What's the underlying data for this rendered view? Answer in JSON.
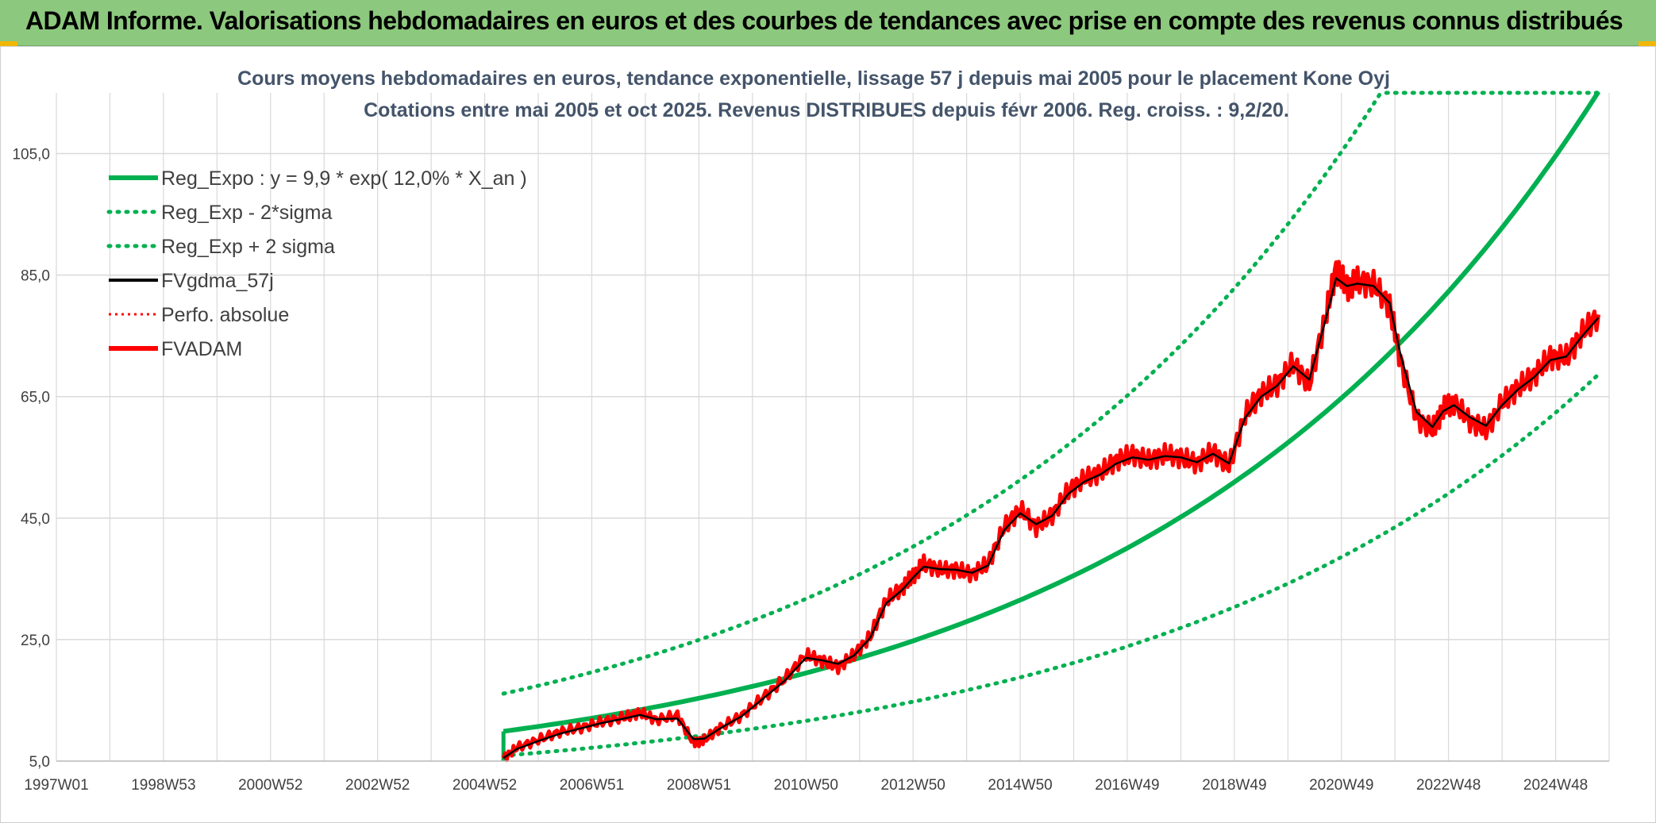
{
  "banner": {
    "title": "ADAM Informe. Valorisations hebdomadaires en euros et des courbes de tendances avec prise en compte des revenus connus distribués"
  },
  "colors": {
    "banner_bg": "#8cc87d",
    "trend": "#00b050",
    "band": "#00b050",
    "smoothed": "#000000",
    "perfo": "#ff0000",
    "fvadam": "#ff0000",
    "grid": "#d9d9d9"
  },
  "chart_data": {
    "type": "line",
    "title_lines": [
      "Cours moyens hebdomadaires en euros, tendance exponentielle, lissage 57 j depuis mai 2005 pour le placement Kone Oyj",
      "Cotations entre mai 2005 et oct 2025. Revenus DISTRIBUES depuis févr 2006. Reg. croiss. : 9,2/20."
    ],
    "x_tick_labels": [
      "1997W01",
      "1998W53",
      "2000W52",
      "2002W52",
      "2004W52",
      "2006W51",
      "2008W51",
      "2010W50",
      "2012W50",
      "2014W50",
      "2016W49",
      "2018W49",
      "2020W49",
      "2022W48",
      "2024W48"
    ],
    "x_ticks_years": [
      1997.0,
      1999.0,
      2001.0,
      2003.0,
      2005.0,
      2007.0,
      2009.0,
      2011.0,
      2013.0,
      2015.0,
      2017.0,
      2019.0,
      2021.0,
      2023.0,
      2025.0
    ],
    "x_range": [
      1997.0,
      2026.0
    ],
    "y_tick_labels": [
      "5,0",
      "25,0",
      "45,0",
      "65,0",
      "85,0",
      "105,0"
    ],
    "y_ticks": [
      5,
      25,
      45,
      65,
      85,
      105
    ],
    "ylim": [
      5,
      115
    ],
    "legend": [
      {
        "key": "trend",
        "label": "Reg_Expo : y = 9,9 * exp( 12,0% *  X_an )",
        "style": "solid-thick"
      },
      {
        "key": "lower",
        "label": "Reg_Exp - 2*sigma",
        "style": "dotted"
      },
      {
        "key": "upper",
        "label": "Reg_Exp + 2 sigma",
        "style": "dotted"
      },
      {
        "key": "smooth",
        "label": "FVgdma_57j",
        "style": "solid"
      },
      {
        "key": "perfo",
        "label": "Perfo. absolue",
        "style": "dotted-red"
      },
      {
        "key": "fvadam",
        "label": "FVADAM",
        "style": "solid-red"
      }
    ],
    "series_trend": {
      "name": "Reg_Expo",
      "start": 2005.35,
      "end": 2025.8,
      "a": 9.9,
      "rate": 0.12
    },
    "series_lower": {
      "name": "Reg_Exp - 2*sigma",
      "start": 2005.35,
      "end": 2025.8,
      "a": 5.9,
      "rate": 0.12
    },
    "series_upper": {
      "name": "Reg_Exp + 2 sigma",
      "start": 2005.35,
      "end": 2025.8,
      "a": 16.1,
      "rate": 0.12,
      "cap": 115
    },
    "series_fvadam": {
      "name": "FVADAM",
      "x": [
        2005.35,
        2005.6,
        2006.0,
        2006.4,
        2006.8,
        2007.2,
        2007.6,
        2007.9,
        2008.2,
        2008.6,
        2008.9,
        2009.1,
        2009.4,
        2009.8,
        2010.2,
        2010.6,
        2011.0,
        2011.3,
        2011.6,
        2011.9,
        2012.2,
        2012.5,
        2012.8,
        2013.0,
        2013.2,
        2013.5,
        2013.8,
        2014.1,
        2014.4,
        2014.7,
        2015.0,
        2015.3,
        2015.6,
        2015.9,
        2016.2,
        2016.5,
        2016.8,
        2017.1,
        2017.4,
        2017.7,
        2018.0,
        2018.3,
        2018.6,
        2018.9,
        2019.2,
        2019.5,
        2019.8,
        2020.1,
        2020.4,
        2020.7,
        2020.9,
        2021.1,
        2021.3,
        2021.6,
        2021.9,
        2022.1,
        2022.4,
        2022.7,
        2022.9,
        2023.1,
        2023.4,
        2023.7,
        2024.0,
        2024.3,
        2024.6,
        2024.9,
        2025.2,
        2025.5,
        2025.8
      ],
      "values": [
        5.5,
        7.2,
        8.5,
        9.8,
        10.5,
        11.5,
        12.2,
        13.0,
        11.8,
        12.5,
        8.0,
        8.5,
        10.5,
        12.5,
        15.5,
        18.5,
        22.5,
        21.5,
        20.5,
        22.5,
        25.5,
        31.5,
        33.5,
        35.5,
        37.5,
        36.5,
        36.5,
        35.8,
        37.5,
        43.5,
        46.5,
        43.5,
        45.5,
        49.5,
        51.5,
        52.5,
        54.5,
        55.5,
        54.5,
        55.5,
        55.0,
        54.0,
        56.0,
        53.5,
        62.0,
        65.5,
        67.0,
        70.5,
        67.0,
        78.0,
        86.0,
        83.0,
        84.0,
        83.5,
        80.0,
        71.0,
        61.5,
        59.5,
        63.0,
        64.0,
        61.0,
        59.5,
        64.0,
        66.5,
        68.5,
        71.5,
        71.5,
        75.5,
        78.5
      ]
    },
    "series_smooth": {
      "name": "FVgdma_57j",
      "x": [
        2005.35,
        2005.6,
        2006.0,
        2006.4,
        2006.8,
        2007.2,
        2007.6,
        2007.9,
        2008.2,
        2008.6,
        2008.9,
        2009.1,
        2009.4,
        2009.8,
        2010.2,
        2010.6,
        2011.0,
        2011.3,
        2011.6,
        2011.9,
        2012.2,
        2012.5,
        2012.8,
        2013.0,
        2013.2,
        2013.5,
        2013.8,
        2014.1,
        2014.4,
        2014.7,
        2015.0,
        2015.3,
        2015.6,
        2015.9,
        2016.2,
        2016.5,
        2016.8,
        2017.1,
        2017.4,
        2017.7,
        2018.0,
        2018.3,
        2018.6,
        2018.9,
        2019.2,
        2019.5,
        2019.8,
        2020.1,
        2020.4,
        2020.7,
        2020.9,
        2021.1,
        2021.3,
        2021.6,
        2021.9,
        2022.1,
        2022.4,
        2022.7,
        2022.9,
        2023.1,
        2023.4,
        2023.7,
        2024.0,
        2024.3,
        2024.6,
        2024.9,
        2025.2,
        2025.5,
        2025.8
      ],
      "values": [
        5.5,
        7.0,
        8.3,
        9.5,
        10.4,
        11.3,
        12.0,
        12.6,
        11.9,
        12.0,
        8.6,
        8.7,
        10.4,
        12.4,
        15.3,
        18.2,
        22.0,
        21.6,
        21.0,
        22.4,
        25.3,
        31.0,
        33.2,
        35.2,
        37.0,
        36.6,
        36.5,
        36.0,
        37.2,
        43.0,
        45.8,
        44.0,
        45.4,
        49.0,
        51.0,
        52.2,
        54.0,
        55.0,
        54.6,
        55.2,
        55.0,
        54.2,
        55.6,
        54.0,
        61.5,
        65.0,
        66.8,
        70.0,
        67.8,
        77.5,
        84.5,
        83.2,
        83.6,
        83.2,
        80.4,
        72.0,
        62.5,
        60.0,
        62.6,
        63.6,
        61.6,
        60.2,
        63.6,
        66.2,
        68.2,
        71.0,
        71.6,
        75.0,
        78.0
      ]
    }
  }
}
